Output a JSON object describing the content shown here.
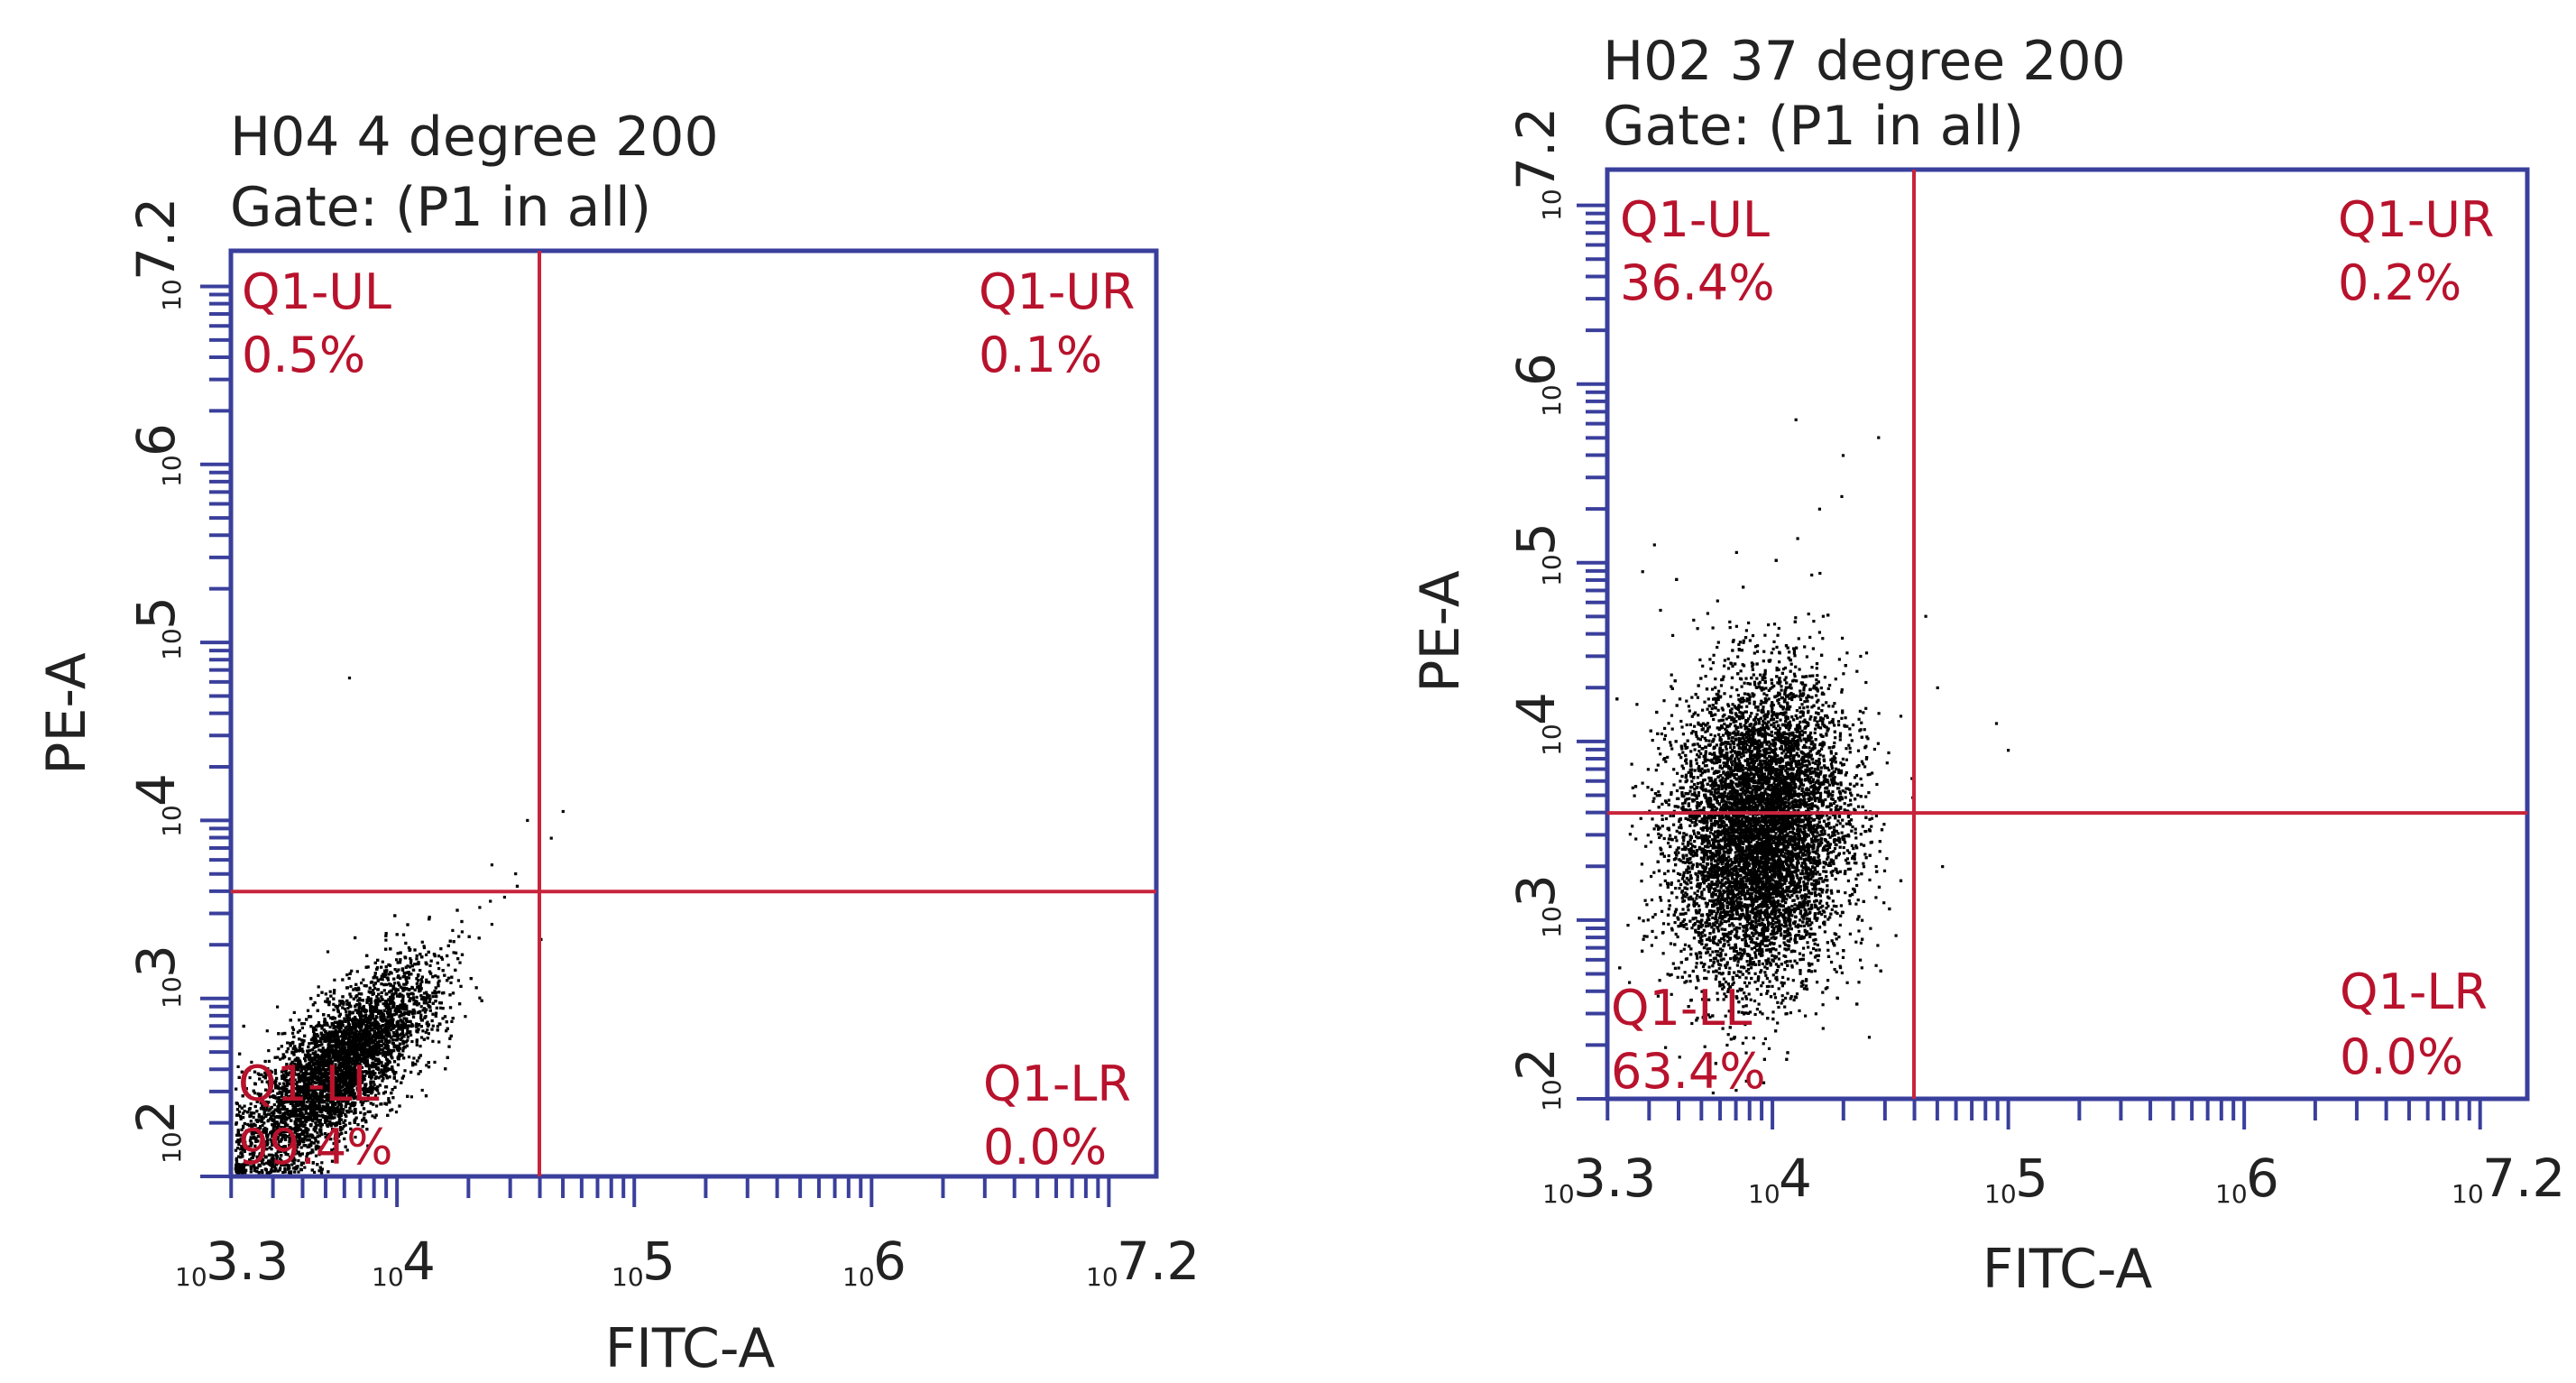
{
  "colors": {
    "frame": "#3a3f9c",
    "gate": "#c8243c",
    "quadrant_text": "#b8122c",
    "points": "#000000",
    "text": "#222222"
  },
  "chart_data": [
    {
      "type": "scatter",
      "title": "H04 4 degree 200",
      "subtitle": "Gate: (P1 in all)",
      "xlabel": "FITC-A",
      "ylabel": "PE-A",
      "scale": "log10",
      "xlim": [
        3.3,
        7.2
      ],
      "ylim": [
        2,
        7.2
      ],
      "x_ticks": [
        {
          "base": "10",
          "exp": "3.3",
          "value": 3.3
        },
        {
          "base": "10",
          "exp": "4",
          "value": 4
        },
        {
          "base": "10",
          "exp": "5",
          "value": 5
        },
        {
          "base": "10",
          "exp": "6",
          "value": 6
        },
        {
          "base": "10",
          "exp": "7.2",
          "value": 7.2
        }
      ],
      "y_ticks": [
        {
          "base": "10",
          "exp": "2",
          "value": 2
        },
        {
          "base": "10",
          "exp": "3",
          "value": 3
        },
        {
          "base": "10",
          "exp": "4",
          "value": 4
        },
        {
          "base": "10",
          "exp": "5",
          "value": 5
        },
        {
          "base": "10",
          "exp": "6",
          "value": 6
        },
        {
          "base": "10",
          "exp": "7.2",
          "value": 7.2
        }
      ],
      "gate": {
        "x": 4.6,
        "y": 3.6
      },
      "quadrants": {
        "UL": {
          "name": "Q1-UL",
          "percent": "0.5%"
        },
        "UR": {
          "name": "Q1-UR",
          "percent": "0.1%"
        },
        "LL": {
          "name": "Q1-LL",
          "percent": "99.4%"
        },
        "LR": {
          "name": "Q1-LR",
          "percent": "0.0%"
        }
      },
      "population": {
        "cx": 3.75,
        "cy": 2.6,
        "sx": 0.2,
        "sy": 0.28,
        "corr": 0.75,
        "count": 7000,
        "outliers": [
          [
            3.8,
            4.8
          ],
          [
            4.55,
            4.0
          ],
          [
            4.7,
            4.05
          ],
          [
            4.65,
            3.9
          ],
          [
            4.5,
            3.7
          ],
          [
            4.4,
            3.75
          ],
          [
            4.25,
            3.6
          ]
        ]
      }
    },
    {
      "type": "scatter",
      "title": "H02 37 degree 200",
      "subtitle": "Gate: (P1 in all)",
      "xlabel": "FITC-A",
      "ylabel": "PE-A",
      "scale": "log10",
      "xlim": [
        3.3,
        7.2
      ],
      "ylim": [
        2,
        7.2
      ],
      "x_ticks": [
        {
          "base": "10",
          "exp": "3.3",
          "value": 3.3
        },
        {
          "base": "10",
          "exp": "4",
          "value": 4
        },
        {
          "base": "10",
          "exp": "5",
          "value": 5
        },
        {
          "base": "10",
          "exp": "6",
          "value": 6
        },
        {
          "base": "10",
          "exp": "7.2",
          "value": 7.2
        }
      ],
      "y_ticks": [
        {
          "base": "10",
          "exp": "2",
          "value": 2
        },
        {
          "base": "10",
          "exp": "3",
          "value": 3
        },
        {
          "base": "10",
          "exp": "4",
          "value": 4
        },
        {
          "base": "10",
          "exp": "5",
          "value": 5
        },
        {
          "base": "10",
          "exp": "6",
          "value": 6
        },
        {
          "base": "10",
          "exp": "7.2",
          "value": 7.2
        }
      ],
      "gate": {
        "x": 4.6,
        "y": 3.6
      },
      "quadrants": {
        "UL": {
          "name": "Q1-UL",
          "percent": "36.4%"
        },
        "UR": {
          "name": "Q1-UR",
          "percent": "0.2%"
        },
        "LL": {
          "name": "Q1-LL",
          "percent": "63.4%"
        },
        "LR": {
          "name": "Q1-LR",
          "percent": "0.0%"
        }
      },
      "population": {
        "cx": 3.95,
        "cy": 3.5,
        "sx": 0.18,
        "sy": 0.42,
        "corr": 0.1,
        "count": 9000,
        "outliers": [
          [
            4.6,
            6.3
          ],
          [
            4.45,
            5.7
          ],
          [
            4.3,
            5.6
          ],
          [
            4.1,
            5.8
          ],
          [
            4.95,
            4.1
          ],
          [
            5.0,
            3.95
          ],
          [
            4.7,
            4.3
          ],
          [
            4.65,
            4.7
          ],
          [
            3.5,
            5.1
          ],
          [
            3.45,
            4.95
          ],
          [
            4.2,
            5.3
          ]
        ]
      }
    }
  ]
}
